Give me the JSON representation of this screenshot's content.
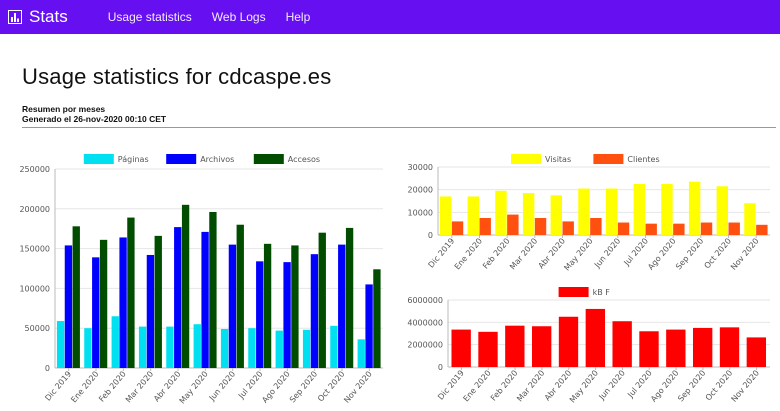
{
  "nav": {
    "brand": "Stats",
    "links": [
      "Usage statistics",
      "Web Logs",
      "Help"
    ]
  },
  "page": {
    "title": "Usage statistics for cdcaspe.es",
    "subtitle": "Resumen por meses",
    "generated": "Generado el 26-nov-2020 00:10 CET"
  },
  "chart_data": [
    {
      "type": "bar",
      "categories": [
        "Dic 2019",
        "Ene 2020",
        "Feb 2020",
        "Mar 2020",
        "Abr 2020",
        "May 2020",
        "Jun 2020",
        "Jul 2020",
        "Ago 2020",
        "Sep 2020",
        "Oct 2020",
        "Nov 2020"
      ],
      "series": [
        {
          "name": "Páginas",
          "color": "#00e0f0",
          "values": [
            59000,
            50000,
            65000,
            52000,
            52000,
            55000,
            49000,
            50000,
            47000,
            48000,
            53000,
            36000
          ]
        },
        {
          "name": "Archivos",
          "color": "#0000ff",
          "values": [
            154000,
            139000,
            164000,
            142000,
            177000,
            171000,
            155000,
            134000,
            133000,
            143000,
            155000,
            105000
          ]
        },
        {
          "name": "Accesos",
          "color": "#004d00",
          "values": [
            178000,
            161000,
            189000,
            166000,
            205000,
            196000,
            180000,
            156000,
            154000,
            170000,
            176000,
            124000
          ]
        }
      ],
      "ylim": [
        0,
        250000
      ],
      "yticks": [
        0,
        50000,
        100000,
        150000,
        200000,
        250000
      ],
      "legend": "top"
    },
    {
      "type": "bar",
      "categories": [
        "Dic 2019",
        "Ene 2020",
        "Feb 2020",
        "Mar 2020",
        "Abr 2020",
        "May 2020",
        "Jun 2020",
        "Jul 2020",
        "Ago 2020",
        "Sep 2020",
        "Oct 2020",
        "Nov 2020"
      ],
      "series": [
        {
          "name": "Visitas",
          "color": "#ffff00",
          "values": [
            17000,
            17000,
            19500,
            18500,
            17500,
            20500,
            20500,
            22500,
            22500,
            23500,
            21500,
            14000
          ]
        },
        {
          "name": "Clientes",
          "color": "#ff5010",
          "values": [
            6000,
            7500,
            9000,
            7500,
            6000,
            7500,
            5500,
            5000,
            5000,
            5500,
            5500,
            4500
          ]
        }
      ],
      "ylim": [
        0,
        30000
      ],
      "yticks": [
        0,
        10000,
        20000,
        30000
      ],
      "legend": "top"
    },
    {
      "type": "bar",
      "categories": [
        "Dic 2019",
        "Ene 2020",
        "Feb 2020",
        "Mar 2020",
        "Abr 2020",
        "May 2020",
        "Jun 2020",
        "Jul 2020",
        "Ago 2020",
        "Sep 2020",
        "Oct 2020",
        "Nov 2020"
      ],
      "series": [
        {
          "name": "kB F",
          "color": "#ff0000",
          "values": [
            3350000,
            3150000,
            3700000,
            3650000,
            4500000,
            5200000,
            4100000,
            3200000,
            3350000,
            3500000,
            3550000,
            2650000
          ]
        }
      ],
      "ylim": [
        0,
        6000000
      ],
      "yticks": [
        0,
        2000000,
        4000000,
        6000000
      ],
      "legend": "top"
    }
  ]
}
